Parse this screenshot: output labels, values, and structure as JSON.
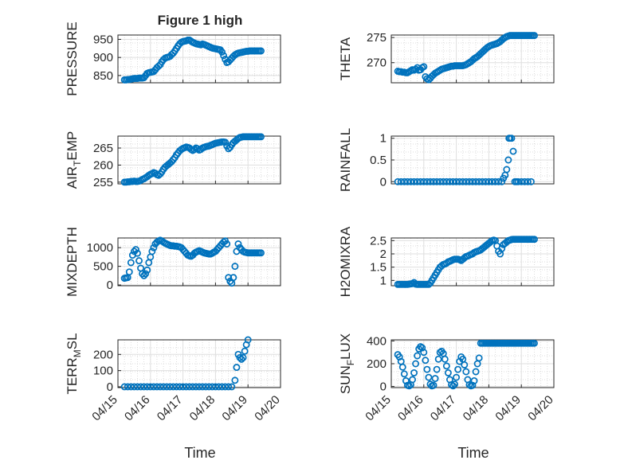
{
  "figure": {
    "title": "Figure 1 high",
    "xlabel": "Time",
    "xticks": [
      "04/15",
      "04/16",
      "04/17",
      "04/18",
      "04/19",
      "04/20"
    ],
    "marker_color": "#0072BD"
  },
  "chart_data": [
    {
      "type": "scatter",
      "ylabel": "PRESSURE",
      "title": "Figure 1 high",
      "xlim": [
        0,
        5
      ],
      "ylim": [
        830,
        962
      ],
      "yticks": [
        850,
        900,
        950
      ],
      "x": [
        0.2,
        0.25,
        0.3,
        0.35,
        0.4,
        0.45,
        0.5,
        0.55,
        0.6,
        0.65,
        0.7,
        0.75,
        0.8,
        0.85,
        0.9,
        0.95,
        1.0,
        1.05,
        1.1,
        1.15,
        1.2,
        1.25,
        1.3,
        1.35,
        1.4,
        1.45,
        1.5,
        1.55,
        1.6,
        1.65,
        1.7,
        1.75,
        1.8,
        1.85,
        1.9,
        1.95,
        2.0,
        2.05,
        2.1,
        2.15,
        2.2,
        2.25,
        2.3,
        2.35,
        2.4,
        2.45,
        2.5,
        2.55,
        2.6,
        2.65,
        2.7,
        2.75,
        2.8,
        2.85,
        2.9,
        2.95,
        3.0,
        3.05,
        3.1,
        3.15,
        3.2,
        3.25,
        3.3,
        3.35,
        3.4,
        3.45,
        3.5,
        3.55,
        3.6,
        3.65,
        3.7,
        3.75,
        3.8,
        3.85,
        3.9,
        3.95,
        4.0,
        4.05,
        4.1,
        4.15,
        4.2,
        4.25,
        4.3,
        4.35,
        4.4
      ],
      "y": [
        838,
        838,
        839,
        839,
        840,
        841,
        842,
        842,
        842,
        843,
        843,
        843,
        844,
        850,
        856,
        858,
        859,
        860,
        861,
        866,
        872,
        876,
        880,
        888,
        894,
        898,
        900,
        901,
        903,
        908,
        912,
        918,
        925,
        932,
        938,
        942,
        944,
        945,
        946,
        948,
        948,
        945,
        942,
        940,
        938,
        937,
        936,
        935,
        937,
        936,
        934,
        932,
        930,
        928,
        926,
        925,
        924,
        923,
        922,
        921,
        915,
        905,
        895,
        886,
        888,
        893,
        898,
        903,
        907,
        910,
        912,
        913,
        914,
        915,
        916,
        917,
        917,
        918,
        918,
        918,
        918,
        918,
        918,
        918,
        918
      ]
    },
    {
      "type": "scatter",
      "ylabel": "THETA",
      "xlim": [
        0,
        5
      ],
      "ylim": [
        266,
        275.5
      ],
      "yticks": [
        270,
        275
      ],
      "x": [
        0.2,
        0.25,
        0.3,
        0.35,
        0.4,
        0.45,
        0.5,
        0.55,
        0.6,
        0.65,
        0.7,
        0.75,
        0.8,
        0.85,
        0.9,
        0.95,
        1.0,
        1.05,
        1.1,
        1.15,
        1.2,
        1.25,
        1.3,
        1.35,
        1.4,
        1.45,
        1.5,
        1.55,
        1.6,
        1.65,
        1.7,
        1.75,
        1.8,
        1.85,
        1.9,
        1.95,
        2.0,
        2.05,
        2.1,
        2.15,
        2.2,
        2.25,
        2.3,
        2.35,
        2.4,
        2.45,
        2.5,
        2.55,
        2.6,
        2.65,
        2.7,
        2.75,
        2.8,
        2.85,
        2.9,
        2.95,
        3.0,
        3.05,
        3.1,
        3.15,
        3.2,
        3.25,
        3.3,
        3.35,
        3.4,
        3.45,
        3.5,
        3.55,
        3.6,
        3.65,
        3.7,
        3.75,
        3.8,
        3.85,
        3.9,
        3.95,
        4.0,
        4.05,
        4.1,
        4.15,
        4.2,
        4.25,
        4.3,
        4.35,
        4.4
      ],
      "y": [
        268.3,
        268.2,
        268.2,
        268.1,
        268.1,
        268.0,
        268.0,
        268.2,
        268.4,
        268.6,
        268.5,
        268.7,
        269.0,
        268.5,
        268.6,
        269.0,
        269.2,
        267.2,
        266.8,
        266.6,
        266.9,
        267.3,
        267.6,
        267.9,
        268.1,
        268.3,
        268.5,
        268.7,
        268.8,
        268.9,
        269.0,
        269.1,
        269.2,
        269.3,
        269.3,
        269.4,
        269.4,
        269.4,
        269.4,
        269.4,
        269.4,
        269.5,
        269.6,
        269.8,
        270.0,
        270.2,
        270.5,
        270.8,
        271.0,
        271.2,
        271.5,
        271.8,
        272.1,
        272.4,
        272.7,
        273.0,
        273.2,
        273.4,
        273.5,
        273.6,
        273.7,
        273.8,
        274.0,
        274.2,
        274.5,
        274.8,
        275.0,
        275.2,
        275.3,
        275.4,
        275.4,
        275.4,
        275.4,
        275.4,
        275.4,
        275.4,
        275.4,
        275.4,
        275.4,
        275.4,
        275.4,
        275.4,
        275.4,
        275.4,
        275.4
      ]
    },
    {
      "type": "scatter",
      "ylabel": "AIR_TEMP",
      "xlim": [
        0,
        5
      ],
      "ylim": [
        254.5,
        268.5
      ],
      "yticks": [
        255,
        260,
        265
      ],
      "x": [
        0.2,
        0.25,
        0.3,
        0.35,
        0.4,
        0.45,
        0.5,
        0.55,
        0.6,
        0.65,
        0.7,
        0.75,
        0.8,
        0.85,
        0.9,
        0.95,
        1.0,
        1.05,
        1.1,
        1.15,
        1.2,
        1.25,
        1.3,
        1.35,
        1.4,
        1.45,
        1.5,
        1.55,
        1.6,
        1.65,
        1.7,
        1.75,
        1.8,
        1.85,
        1.9,
        1.95,
        2.0,
        2.05,
        2.1,
        2.15,
        2.2,
        2.25,
        2.3,
        2.35,
        2.4,
        2.45,
        2.5,
        2.55,
        2.6,
        2.65,
        2.7,
        2.75,
        2.8,
        2.85,
        2.9,
        2.95,
        3.0,
        3.05,
        3.1,
        3.15,
        3.2,
        3.25,
        3.3,
        3.35,
        3.4,
        3.45,
        3.5,
        3.55,
        3.6,
        3.65,
        3.7,
        3.75,
        3.8,
        3.85,
        3.9,
        3.95,
        4.0,
        4.05,
        4.1,
        4.15,
        4.2,
        4.25,
        4.3,
        4.35,
        4.4
      ],
      "y": [
        255.0,
        255.0,
        255.1,
        255.1,
        255.2,
        255.2,
        255.3,
        255.2,
        255.2,
        255.3,
        255.5,
        255.8,
        256.0,
        256.3,
        256.6,
        257.0,
        257.3,
        257.5,
        257.8,
        257.6,
        257.2,
        257.0,
        257.4,
        258.0,
        258.8,
        259.4,
        259.8,
        260.2,
        260.6,
        261.0,
        261.6,
        262.2,
        263.0,
        263.6,
        264.2,
        264.6,
        264.9,
        265.1,
        265.3,
        265.2,
        265.0,
        264.6,
        264.3,
        264.6,
        265.0,
        264.8,
        264.4,
        264.6,
        265.0,
        265.2,
        265.4,
        265.5,
        265.6,
        265.8,
        266.0,
        266.2,
        266.4,
        266.5,
        266.6,
        266.7,
        266.8,
        266.8,
        266.7,
        265.6,
        264.8,
        265.2,
        266.0,
        266.6,
        267.0,
        267.4,
        267.8,
        268.1,
        268.2,
        268.3,
        268.3,
        268.3,
        268.3,
        268.3,
        268.3,
        268.3,
        268.3,
        268.3,
        268.3,
        268.3,
        268.3
      ]
    },
    {
      "type": "scatter",
      "ylabel": "RAINFALL",
      "xlim": [
        0,
        5
      ],
      "ylim": [
        -0.05,
        1.05
      ],
      "yticks": [
        0,
        0.5,
        1
      ],
      "x": [
        0.2,
        0.3,
        0.4,
        0.5,
        0.6,
        0.7,
        0.8,
        0.9,
        1.0,
        1.1,
        1.2,
        1.3,
        1.4,
        1.5,
        1.6,
        1.7,
        1.8,
        1.9,
        2.0,
        2.1,
        2.2,
        2.3,
        2.4,
        2.5,
        2.6,
        2.7,
        2.8,
        2.9,
        3.0,
        3.1,
        3.2,
        3.3,
        3.4,
        3.45,
        3.5,
        3.55,
        3.6,
        3.62,
        3.65,
        3.7,
        3.75,
        3.8,
        3.85,
        3.9,
        4.0,
        4.1,
        4.2,
        4.3
      ],
      "y": [
        0,
        0,
        0,
        0,
        0,
        0,
        0,
        0,
        0,
        0,
        0,
        0,
        0,
        0,
        0,
        0,
        0,
        0,
        0,
        0,
        0,
        0,
        0,
        0,
        0,
        0,
        0,
        0,
        0,
        0,
        0,
        0,
        0,
        0.08,
        0.15,
        0.28,
        0.5,
        1.0,
        1.0,
        1.0,
        0.7,
        0,
        0,
        0,
        0,
        0,
        0,
        0
      ]
    },
    {
      "type": "scatter",
      "ylabel": "MIXDEPTH",
      "xlim": [
        0,
        5
      ],
      "ylim": [
        -20,
        1260
      ],
      "yticks": [
        0,
        500,
        1000
      ],
      "x": [
        0.2,
        0.25,
        0.3,
        0.35,
        0.4,
        0.45,
        0.5,
        0.55,
        0.6,
        0.65,
        0.7,
        0.75,
        0.8,
        0.85,
        0.9,
        0.95,
        1.0,
        1.05,
        1.1,
        1.15,
        1.2,
        1.25,
        1.3,
        1.35,
        1.4,
        1.45,
        1.5,
        1.55,
        1.6,
        1.65,
        1.7,
        1.75,
        1.8,
        1.85,
        1.9,
        1.95,
        2.0,
        2.05,
        2.1,
        2.15,
        2.2,
        2.25,
        2.3,
        2.35,
        2.4,
        2.45,
        2.5,
        2.55,
        2.6,
        2.65,
        2.7,
        2.75,
        2.8,
        2.85,
        2.9,
        2.95,
        3.0,
        3.05,
        3.1,
        3.15,
        3.2,
        3.25,
        3.3,
        3.35,
        3.4,
        3.45,
        3.5,
        3.55,
        3.6,
        3.65,
        3.7,
        3.75,
        3.8,
        3.85,
        3.9,
        3.95,
        4.0,
        4.05,
        4.1,
        4.15,
        4.2,
        4.25,
        4.3,
        4.35,
        4.4
      ],
      "y": [
        180,
        190,
        200,
        350,
        600,
        800,
        900,
        950,
        850,
        650,
        450,
        300,
        250,
        300,
        400,
        600,
        750,
        900,
        1000,
        1100,
        1150,
        1180,
        1200,
        1180,
        1150,
        1120,
        1100,
        1080,
        1060,
        1050,
        1050,
        1040,
        1040,
        1030,
        1020,
        1000,
        950,
        900,
        850,
        800,
        780,
        770,
        800,
        850,
        880,
        900,
        920,
        900,
        880,
        860,
        850,
        840,
        830,
        830,
        850,
        880,
        900,
        950,
        1000,
        1050,
        1100,
        1150,
        1180,
        1100,
        200,
        100,
        50,
        200,
        500,
        900,
        1100,
        1000,
        950,
        900,
        880,
        870,
        860,
        860,
        860,
        860,
        860,
        860,
        860,
        860,
        860
      ]
    },
    {
      "type": "scatter",
      "ylabel": "H2OMIXRA",
      "xlim": [
        0,
        5
      ],
      "ylim": [
        0.8,
        2.6
      ],
      "yticks": [
        1,
        1.5,
        2,
        2.5
      ],
      "x": [
        0.2,
        0.25,
        0.3,
        0.35,
        0.4,
        0.45,
        0.5,
        0.55,
        0.6,
        0.65,
        0.7,
        0.75,
        0.8,
        0.85,
        0.9,
        0.95,
        1.0,
        1.05,
        1.1,
        1.15,
        1.2,
        1.25,
        1.3,
        1.35,
        1.4,
        1.45,
        1.5,
        1.55,
        1.6,
        1.65,
        1.7,
        1.75,
        1.8,
        1.85,
        1.9,
        1.95,
        2.0,
        2.05,
        2.1,
        2.15,
        2.2,
        2.25,
        2.3,
        2.35,
        2.4,
        2.45,
        2.5,
        2.55,
        2.6,
        2.65,
        2.7,
        2.75,
        2.8,
        2.85,
        2.9,
        2.95,
        3.0,
        3.05,
        3.1,
        3.15,
        3.2,
        3.25,
        3.3,
        3.35,
        3.4,
        3.45,
        3.5,
        3.55,
        3.6,
        3.65,
        3.7,
        3.75,
        3.8,
        3.85,
        3.9,
        3.95,
        4.0,
        4.05,
        4.1,
        4.15,
        4.2,
        4.25,
        4.3,
        4.35,
        4.4
      ],
      "y": [
        0.85,
        0.85,
        0.85,
        0.85,
        0.85,
        0.85,
        0.85,
        0.86,
        0.87,
        0.88,
        0.92,
        0.86,
        0.85,
        0.85,
        0.85,
        0.85,
        0.85,
        0.85,
        0.85,
        0.85,
        0.9,
        1.0,
        1.1,
        1.2,
        1.3,
        1.4,
        1.5,
        1.55,
        1.6,
        1.62,
        1.65,
        1.7,
        1.72,
        1.75,
        1.78,
        1.8,
        1.8,
        1.8,
        1.78,
        1.75,
        1.8,
        1.85,
        1.9,
        1.92,
        1.95,
        1.98,
        2.0,
        2.05,
        2.08,
        2.1,
        2.12,
        2.15,
        2.2,
        2.25,
        2.3,
        2.35,
        2.4,
        2.45,
        2.5,
        2.52,
        2.5,
        2.3,
        2.1,
        2.0,
        2.2,
        2.35,
        2.4,
        2.45,
        2.5,
        2.52,
        2.54,
        2.55,
        2.55,
        2.55,
        2.55,
        2.55,
        2.55,
        2.55,
        2.55,
        2.55,
        2.55,
        2.55,
        2.55,
        2.55,
        2.55
      ]
    },
    {
      "type": "scatter",
      "ylabel": "TERR_MSL",
      "xlim": [
        0,
        5
      ],
      "ylim": [
        -5,
        290
      ],
      "yticks": [
        0,
        100,
        200
      ],
      "x": [
        0.2,
        0.3,
        0.4,
        0.5,
        0.6,
        0.7,
        0.8,
        0.9,
        1.0,
        1.1,
        1.2,
        1.3,
        1.4,
        1.5,
        1.6,
        1.7,
        1.8,
        1.9,
        2.0,
        2.1,
        2.2,
        2.3,
        2.4,
        2.5,
        2.6,
        2.7,
        2.8,
        2.9,
        3.0,
        3.1,
        3.2,
        3.3,
        3.4,
        3.5,
        3.6,
        3.65,
        3.7,
        3.75,
        3.8,
        3.85,
        3.9,
        3.95,
        4.0
      ],
      "y": [
        0,
        0,
        0,
        0,
        0,
        0,
        0,
        0,
        0,
        0,
        0,
        0,
        0,
        0,
        0,
        0,
        0,
        0,
        0,
        0,
        0,
        0,
        0,
        0,
        0,
        0,
        0,
        0,
        0,
        0,
        0,
        0,
        0,
        0,
        40,
        120,
        200,
        180,
        170,
        180,
        220,
        260,
        290
      ]
    },
    {
      "type": "scatter",
      "ylabel": "SUN_FLUX",
      "xlim": [
        0,
        5
      ],
      "ylim": [
        -10,
        410
      ],
      "yticks": [
        0,
        200,
        400
      ],
      "x": [
        0.2,
        0.25,
        0.3,
        0.35,
        0.4,
        0.45,
        0.5,
        0.55,
        0.6,
        0.65,
        0.7,
        0.75,
        0.8,
        0.85,
        0.9,
        0.95,
        1.0,
        1.05,
        1.1,
        1.15,
        1.2,
        1.25,
        1.3,
        1.35,
        1.4,
        1.45,
        1.5,
        1.55,
        1.6,
        1.65,
        1.7,
        1.75,
        1.8,
        1.85,
        1.9,
        1.95,
        2.0,
        2.05,
        2.1,
        2.15,
        2.2,
        2.25,
        2.3,
        2.35,
        2.4,
        2.45,
        2.5,
        2.55,
        2.6,
        2.65,
        2.7,
        2.75,
        2.8,
        2.85,
        2.9,
        2.95,
        3.0,
        3.05,
        3.1,
        3.15,
        3.2,
        3.25,
        3.3,
        3.35,
        3.4,
        3.45,
        3.5,
        3.55,
        3.6,
        3.65,
        3.7,
        3.75,
        3.8,
        3.85,
        3.9,
        3.95,
        4.0,
        4.05,
        4.1,
        4.15,
        4.2,
        4.25,
        4.3,
        4.35,
        4.4
      ],
      "y": [
        280,
        260,
        220,
        170,
        110,
        50,
        10,
        5,
        15,
        60,
        120,
        200,
        270,
        330,
        350,
        340,
        300,
        230,
        150,
        80,
        20,
        5,
        10,
        70,
        150,
        240,
        300,
        310,
        290,
        240,
        180,
        120,
        60,
        15,
        5,
        20,
        80,
        150,
        220,
        260,
        240,
        190,
        130,
        60,
        15,
        5,
        10,
        50,
        130,
        200,
        250,
        380,
        380,
        380,
        380,
        380,
        380,
        380,
        380,
        380,
        380,
        380,
        380,
        380,
        380,
        380,
        380,
        380,
        380,
        380,
        380,
        380,
        380,
        380,
        380,
        380,
        380,
        380,
        380,
        380,
        380,
        380,
        380,
        380,
        380
      ]
    }
  ]
}
